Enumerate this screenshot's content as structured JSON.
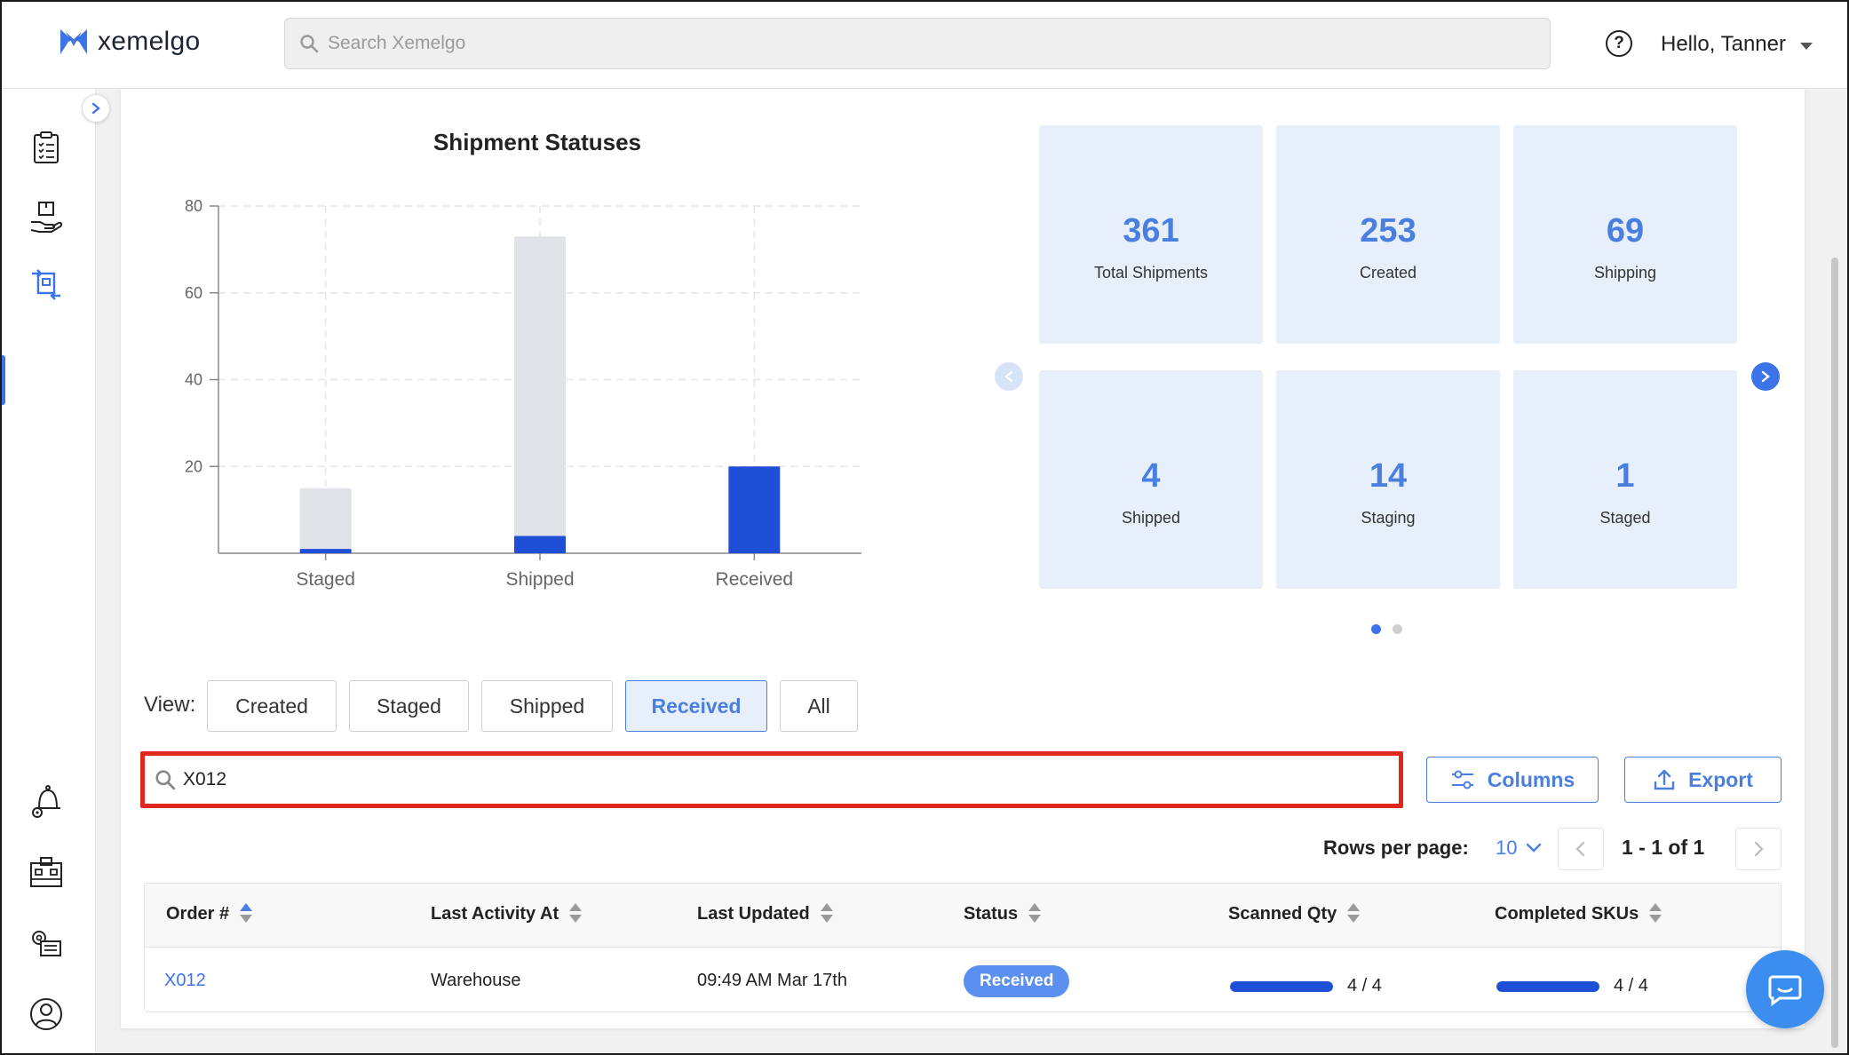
{
  "header": {
    "logo_text": "xemelgo",
    "search_placeholder": "Search Xemelgo",
    "help_icon": "question-circle-icon",
    "greeting": "Hello, Tanner"
  },
  "sidebar": {
    "items": [
      {
        "name": "orders",
        "icon": "clipboard-list-icon",
        "active": false
      },
      {
        "name": "inventory",
        "icon": "hand-box-icon",
        "active": false
      },
      {
        "name": "shipments",
        "icon": "transfer-box-icon",
        "active": true
      },
      {
        "name": "alerts",
        "icon": "bell-gear-icon",
        "active": false
      },
      {
        "name": "locations",
        "icon": "building-icon",
        "active": false
      },
      {
        "name": "settings",
        "icon": "gear-list-icon",
        "active": false
      },
      {
        "name": "profile",
        "icon": "user-circle-icon",
        "active": false
      }
    ]
  },
  "chart": {
    "title": "Shipment Statuses"
  },
  "chart_data": {
    "type": "bar",
    "title": "Shipment Statuses",
    "categories": [
      "Staged",
      "Shipped",
      "Received"
    ],
    "series": [
      {
        "values": [
          15,
          73,
          0
        ],
        "color": "#e2e3e8"
      },
      {
        "values": [
          1,
          4,
          20
        ],
        "color": "#1e4fd6"
      }
    ],
    "ylim": [
      0,
      80
    ],
    "yticks": [
      20,
      40,
      60,
      80
    ],
    "grid": true
  },
  "stats": {
    "tiles": [
      {
        "value": "361",
        "label": "Total Shipments"
      },
      {
        "value": "253",
        "label": "Created"
      },
      {
        "value": "69",
        "label": "Shipping"
      },
      {
        "value": "4",
        "label": "Shipped"
      },
      {
        "value": "14",
        "label": "Staging"
      },
      {
        "value": "1",
        "label": "Staged"
      }
    ],
    "active_page": 1,
    "pages": 2,
    "colors": {
      "accent": "#4a7fe0",
      "tile_bg": "#e7f0fa"
    }
  },
  "view": {
    "label": "View:",
    "options": [
      "Created",
      "Staged",
      "Shipped",
      "Received",
      "All"
    ],
    "selected": "Received"
  },
  "table_search": {
    "value": "X012",
    "highlight_color": "#e0271b"
  },
  "actions": {
    "columns_label": "Columns",
    "export_label": "Export"
  },
  "pagination": {
    "rows_label": "Rows per page:",
    "rows_value": "10",
    "range": "1 - 1 of 1"
  },
  "table": {
    "columns": [
      "Order #",
      "Last Activity At",
      "Last Updated",
      "Status",
      "Scanned Qty",
      "Completed SKUs"
    ],
    "sorted_column": "Order #",
    "rows": [
      {
        "order": "X012",
        "last_activity": "Warehouse",
        "last_updated": "09:49 AM Mar 17th",
        "status": "Received",
        "scanned_qty": "4 / 4",
        "scanned_progress": 1.0,
        "completed_skus": "4 / 4",
        "completed_progress": 1.0
      }
    ]
  },
  "chat": {
    "icon": "chat-bubble-icon"
  }
}
